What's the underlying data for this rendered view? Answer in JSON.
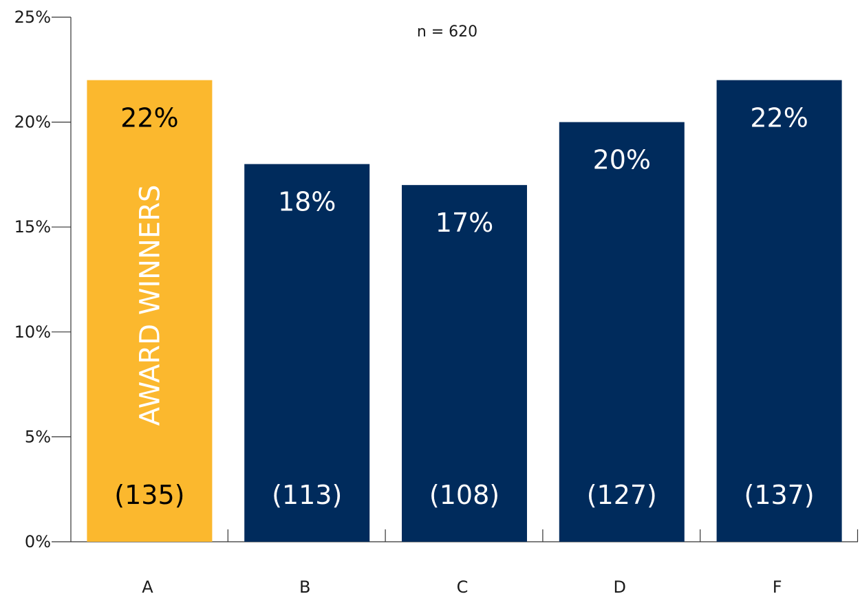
{
  "chart_data": {
    "type": "bar",
    "title": "",
    "xlabel": "",
    "ylabel": "",
    "annotation": "n = 620",
    "categories": [
      "A",
      "B",
      "C",
      "D",
      "F"
    ],
    "values": [
      22,
      18,
      17,
      20,
      22
    ],
    "value_labels": [
      "22%",
      "18%",
      "17%",
      "20%",
      "22%"
    ],
    "counts": [
      "(135)",
      "(113)",
      "(108)",
      "(127)",
      "(137)"
    ],
    "bar_colors": [
      "#FBB82E",
      "#002B5C",
      "#002B5C",
      "#002B5C",
      "#002B5C"
    ],
    "value_label_colors": [
      "#000000",
      "#ffffff",
      "#ffffff",
      "#ffffff",
      "#ffffff"
    ],
    "count_label_colors": [
      "#000000",
      "#ffffff",
      "#ffffff",
      "#ffffff",
      "#ffffff"
    ],
    "highlight_label": "AWARD WINNERS",
    "y_ticks": [
      0,
      5,
      10,
      15,
      20,
      25
    ],
    "y_tick_labels": [
      "0%",
      "5%",
      "10%",
      "15%",
      "20%",
      "25%"
    ],
    "ylim": [
      0,
      25
    ],
    "grid": false,
    "legend": "none"
  }
}
